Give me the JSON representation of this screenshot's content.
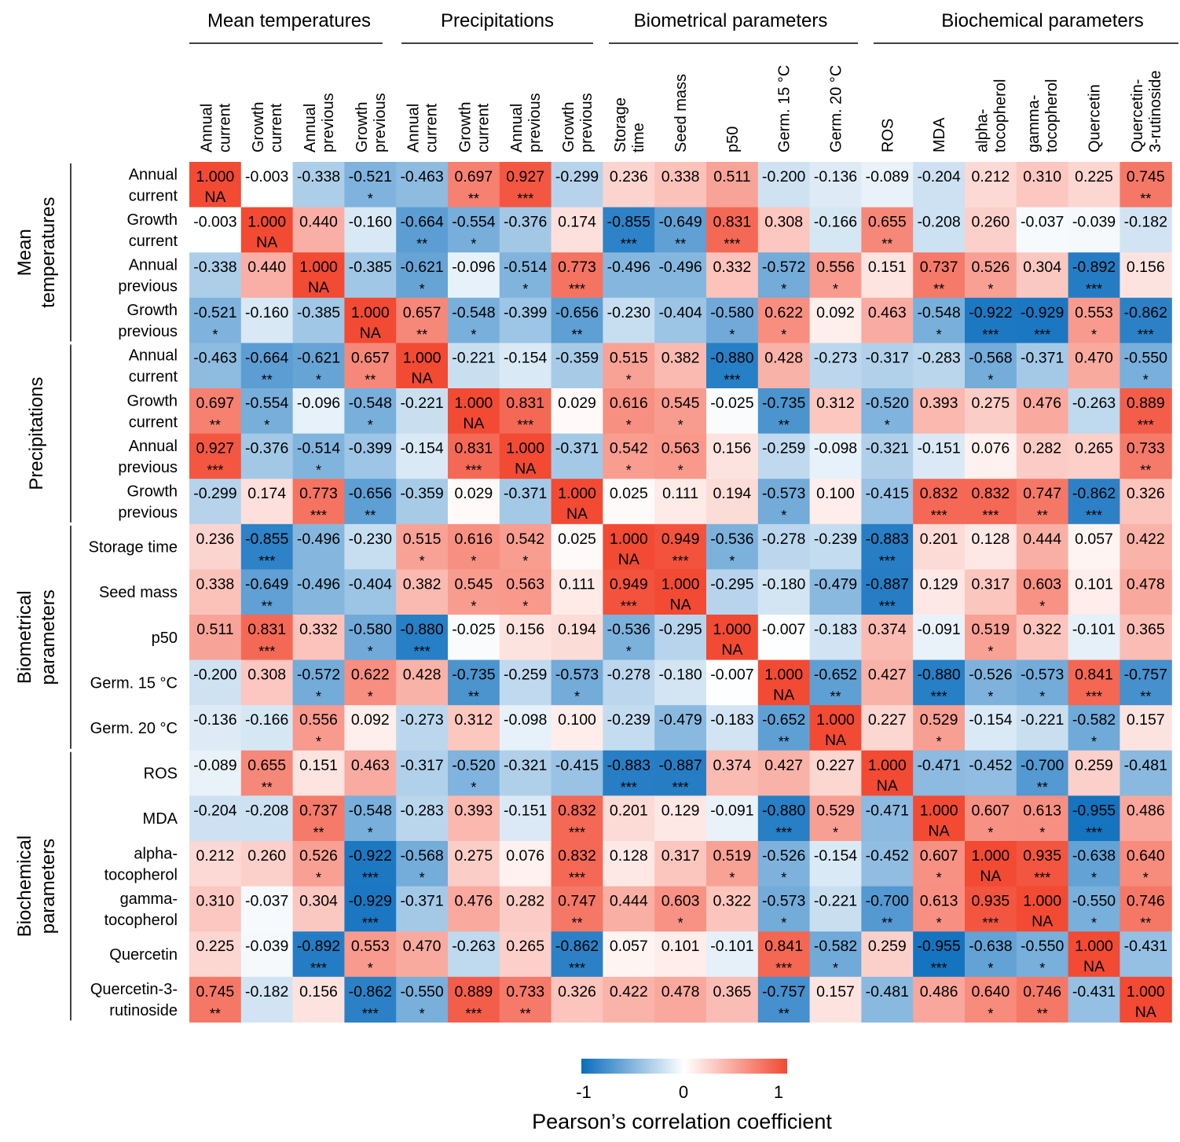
{
  "chart_data": {
    "type": "heatmap",
    "title": "",
    "groups": [
      "Mean temperatures",
      "Precipitations",
      "Biometrical parameters",
      "Biochemical parameters"
    ],
    "row_groups": [
      "Mean\ntemperatures",
      "Precipitations",
      "Biometrical\nparameters",
      "Biochemical\nparameters"
    ],
    "col_labels": [
      "Annual\ncurrent",
      "Growth\ncurrent",
      "Annual\nprevious",
      "Growth\nprevious",
      "Annual\ncurrent",
      "Growth\ncurrent",
      "Annual\nprevious",
      "Growth\nprevious",
      "Storage\ntime",
      "Seed mass",
      "p50",
      "Germ. 15 °C",
      "Germ. 20 °C",
      "ROS",
      "MDA",
      "alpha-\ntocopherol",
      "gamma-\ntocopherol",
      "Quercetin",
      "Quercetin-\n3-rutinoside"
    ],
    "row_labels": [
      "Annual\ncurrent",
      "Growth\ncurrent",
      "Annual\nprevious",
      "Growth\nprevious",
      "Annual\ncurrent",
      "Growth\ncurrent",
      "Annual\nprevious",
      "Growth\nprevious",
      "Storage time",
      "Seed mass",
      "p50",
      "Germ. 15 °C",
      "Germ. 20 °C",
      "ROS",
      "MDA",
      "alpha-\ntocopherol",
      "gamma-\ntocopherol",
      "Quercetin",
      "Quercetin-3-\nrutinoside"
    ],
    "values": [
      [
        "1.000",
        "-0.003",
        "-0.338",
        "-0.521",
        "-0.463",
        "0.697",
        "0.927",
        "-0.299",
        "0.236",
        "0.338",
        "0.511",
        "-0.200",
        "-0.136",
        "-0.089",
        "-0.204",
        "0.212",
        "0.310",
        "0.225",
        "0.745"
      ],
      [
        "-0.003",
        "1.000",
        "0.440",
        "-0.160",
        "-0.664",
        "-0.554",
        "-0.376",
        "0.174",
        "-0.855",
        "-0.649",
        "0.831",
        "0.308",
        "-0.166",
        "0.655",
        "-0.208",
        "0.260",
        "-0.037",
        "-0.039",
        "-0.182"
      ],
      [
        "-0.338",
        "0.440",
        "1.000",
        "-0.385",
        "-0.621",
        "-0.096",
        "-0.514",
        "0.773",
        "-0.496",
        "-0.496",
        "0.332",
        "-0.572",
        "0.556",
        "0.151",
        "0.737",
        "0.526",
        "0.304",
        "-0.892",
        "0.156"
      ],
      [
        "-0.521",
        "-0.160",
        "-0.385",
        "1.000",
        "0.657",
        "-0.548",
        "-0.399",
        "-0.656",
        "-0.230",
        "-0.404",
        "-0.580",
        "0.622",
        "0.092",
        "0.463",
        "-0.548",
        "-0.922",
        "-0.929",
        "0.553",
        "-0.862"
      ],
      [
        "-0.463",
        "-0.664",
        "-0.621",
        "0.657",
        "1.000",
        "-0.221",
        "-0.154",
        "-0.359",
        "0.515",
        "0.382",
        "-0.880",
        "0.428",
        "-0.273",
        "-0.317",
        "-0.283",
        "-0.568",
        "-0.371",
        "0.470",
        "-0.550"
      ],
      [
        "0.697",
        "-0.554",
        "-0.096",
        "-0.548",
        "-0.221",
        "1.000",
        "0.831",
        "0.029",
        "0.616",
        "0.545",
        "-0.025",
        "-0.735",
        "0.312",
        "-0.520",
        "0.393",
        "0.275",
        "0.476",
        "-0.263",
        "0.889"
      ],
      [
        "0.927",
        "-0.376",
        "-0.514",
        "-0.399",
        "-0.154",
        "0.831",
        "1.000",
        "-0.371",
        "0.542",
        "0.563",
        "0.156",
        "-0.259",
        "-0.098",
        "-0.321",
        "-0.151",
        "0.076",
        "0.282",
        "0.265",
        "0.733"
      ],
      [
        "-0.299",
        "0.174",
        "0.773",
        "-0.656",
        "-0.359",
        "0.029",
        "-0.371",
        "1.000",
        "0.025",
        "0.111",
        "0.194",
        "-0.573",
        "0.100",
        "-0.415",
        "0.832",
        "0.832",
        "0.747",
        "-0.862",
        "0.326"
      ],
      [
        "0.236",
        "-0.855",
        "-0.496",
        "-0.230",
        "0.515",
        "0.616",
        "0.542",
        "0.025",
        "1.000",
        "0.949",
        "-0.536",
        "-0.278",
        "-0.239",
        "-0.883",
        "0.201",
        "0.128",
        "0.444",
        "0.057",
        "0.422"
      ],
      [
        "0.338",
        "-0.649",
        "-0.496",
        "-0.404",
        "0.382",
        "0.545",
        "0.563",
        "0.111",
        "0.949",
        "1.000",
        "-0.295",
        "-0.180",
        "-0.479",
        "-0.887",
        "0.129",
        "0.317",
        "0.603",
        "0.101",
        "0.478"
      ],
      [
        "0.511",
        "0.831",
        "0.332",
        "-0.580",
        "-0.880",
        "-0.025",
        "0.156",
        "0.194",
        "-0.536",
        "-0.295",
        "1.000",
        "-0.007",
        "-0.183",
        "0.374",
        "-0.091",
        "0.519",
        "0.322",
        "-0.101",
        "0.365"
      ],
      [
        "-0.200",
        "0.308",
        "-0.572",
        "0.622",
        "0.428",
        "-0.735",
        "-0.259",
        "-0.573",
        "-0.278",
        "-0.180",
        "-0.007",
        "1.000",
        "-0.652",
        "0.427",
        "-0.880",
        "-0.526",
        "-0.573",
        "0.841",
        "-0.757"
      ],
      [
        "-0.136",
        "-0.166",
        "0.556",
        "0.092",
        "-0.273",
        "0.312",
        "-0.098",
        "0.100",
        "-0.239",
        "-0.479",
        "-0.183",
        "-0.652",
        "1.000",
        "0.227",
        "0.529",
        "-0.154",
        "-0.221",
        "-0.582",
        "0.157"
      ],
      [
        "-0.089",
        "0.655",
        "0.151",
        "0.463",
        "-0.317",
        "-0.520",
        "-0.321",
        "-0.415",
        "-0.883",
        "-0.887",
        "0.374",
        "0.427",
        "0.227",
        "1.000",
        "-0.471",
        "-0.452",
        "-0.700",
        "0.259",
        "-0.481"
      ],
      [
        "-0.204",
        "-0.208",
        "0.737",
        "-0.548",
        "-0.283",
        "0.393",
        "-0.151",
        "0.832",
        "0.201",
        "0.129",
        "-0.091",
        "-0.880",
        "0.529",
        "-0.471",
        "1.000",
        "0.607",
        "0.613",
        "-0.955",
        "0.486"
      ],
      [
        "0.212",
        "0.260",
        "0.526",
        "-0.922",
        "-0.568",
        "0.275",
        "0.076",
        "0.832",
        "0.128",
        "0.317",
        "0.519",
        "-0.526",
        "-0.154",
        "-0.452",
        "0.607",
        "1.000",
        "0.935",
        "-0.638",
        "0.640"
      ],
      [
        "0.310",
        "-0.037",
        "0.304",
        "-0.929",
        "-0.371",
        "0.476",
        "0.282",
        "0.747",
        "0.444",
        "0.603",
        "0.322",
        "-0.573",
        "-0.221",
        "-0.700",
        "0.613",
        "0.935",
        "1.000",
        "-0.550",
        "0.746"
      ],
      [
        "0.225",
        "-0.039",
        "-0.892",
        "0.553",
        "0.470",
        "-0.263",
        "0.265",
        "-0.862",
        "0.057",
        "0.101",
        "-0.101",
        "0.841",
        "-0.582",
        "0.259",
        "-0.955",
        "-0.638",
        "-0.550",
        "1.000",
        "-0.431"
      ],
      [
        "0.745",
        "-0.182",
        "0.156",
        "-0.862",
        "-0.550",
        "0.889",
        "0.733",
        "0.326",
        "0.422",
        "0.478",
        "0.365",
        "-0.757",
        "0.157",
        "-0.481",
        "0.486",
        "0.640",
        "0.746",
        "-0.431",
        "1.000"
      ]
    ],
    "significance": [
      [
        "NA",
        "",
        "",
        "*",
        "",
        "**",
        "***",
        "",
        "",
        "",
        "",
        "",
        "",
        "",
        "",
        "",
        "",
        "",
        "**"
      ],
      [
        "",
        "NA",
        "",
        "",
        "**",
        "*",
        "",
        "",
        "***",
        "**",
        "***",
        "",
        "",
        "**",
        "",
        "",
        "",
        "",
        ""
      ],
      [
        "",
        "",
        "NA",
        "",
        "*",
        "",
        "*",
        "***",
        "",
        "",
        "",
        "*",
        "*",
        "",
        "**",
        "*",
        "",
        "***",
        ""
      ],
      [
        "*",
        "",
        "",
        "NA",
        "**",
        "*",
        "",
        "**",
        "",
        "",
        "*",
        "*",
        "",
        "",
        "*",
        "***",
        "***",
        "*",
        "***"
      ],
      [
        "",
        "**",
        "*",
        "**",
        "NA",
        "",
        "",
        "",
        "*",
        "",
        "***",
        "",
        "",
        "",
        "",
        "*",
        "",
        "",
        "*"
      ],
      [
        "**",
        "*",
        "",
        "*",
        "",
        "NA",
        "***",
        "",
        "*",
        "*",
        "",
        "**",
        "",
        "*",
        "",
        "",
        "",
        "",
        "***"
      ],
      [
        "***",
        "",
        "*",
        "",
        "",
        "***",
        "NA",
        "",
        "*",
        "*",
        "",
        "",
        "",
        "",
        "",
        "",
        "",
        "",
        "**"
      ],
      [
        "",
        "",
        "***",
        "**",
        "",
        "",
        "",
        "NA",
        "",
        "",
        "",
        "*",
        "",
        "",
        "***",
        "***",
        "**",
        "***",
        ""
      ],
      [
        "",
        "***",
        "",
        "",
        "*",
        "*",
        "*",
        "",
        "NA",
        "***",
        "*",
        "",
        "",
        "***",
        "",
        "",
        "",
        "",
        ""
      ],
      [
        "",
        "**",
        "",
        "",
        "",
        "*",
        "*",
        "",
        "***",
        "NA",
        "",
        "",
        "",
        "***",
        "",
        "",
        "*",
        "",
        ""
      ],
      [
        "",
        "***",
        "",
        "*",
        "***",
        "",
        "",
        "",
        "*",
        "",
        "NA",
        "",
        "",
        "",
        "",
        "*",
        "",
        "",
        ""
      ],
      [
        "",
        "",
        "*",
        "*",
        "",
        "**",
        "",
        "*",
        "",
        "",
        "",
        "NA",
        "**",
        "",
        "***",
        "*",
        "*",
        "***",
        "**"
      ],
      [
        "",
        "",
        "*",
        "",
        "",
        "",
        "",
        "",
        "",
        "",
        "",
        "**",
        "NA",
        "",
        "*",
        "",
        "",
        "*",
        ""
      ],
      [
        "",
        "**",
        "",
        "",
        "",
        "*",
        "",
        "",
        "***",
        "***",
        "",
        "",
        "",
        "NA",
        "",
        "",
        "**",
        "",
        ""
      ],
      [
        "",
        "",
        "**",
        "*",
        "",
        "",
        "",
        "***",
        "",
        "",
        "",
        "***",
        "*",
        "",
        "NA",
        "*",
        "*",
        "***",
        ""
      ],
      [
        "",
        "",
        "*",
        "***",
        "*",
        "",
        "",
        "***",
        "",
        "",
        "*",
        "*",
        "",
        "",
        "*",
        "NA",
        "***",
        "*",
        "*"
      ],
      [
        "",
        "",
        "",
        "***",
        "",
        "",
        "",
        "**",
        "",
        "*",
        "",
        "*",
        "",
        "**",
        "*",
        "***",
        "NA",
        "*",
        "**"
      ],
      [
        "",
        "",
        "***",
        "*",
        "",
        "",
        "",
        "***",
        "",
        "",
        "",
        "***",
        "*",
        "",
        "***",
        "*",
        "*",
        "NA",
        ""
      ],
      [
        "**",
        "",
        "",
        "***",
        "*",
        "***",
        "**",
        "",
        "",
        "",
        "",
        "**",
        "",
        "",
        "",
        "*",
        "**",
        "",
        "NA"
      ]
    ],
    "colorbar": {
      "min": -1,
      "mid": 0,
      "max": 1,
      "tick_labels": [
        "-1",
        "0",
        "1"
      ],
      "title": "Pearson’s correlation coefficient",
      "colors": {
        "neg": "#0a6dbd",
        "zero": "#ffffff",
        "pos": "#f24a33"
      }
    }
  }
}
